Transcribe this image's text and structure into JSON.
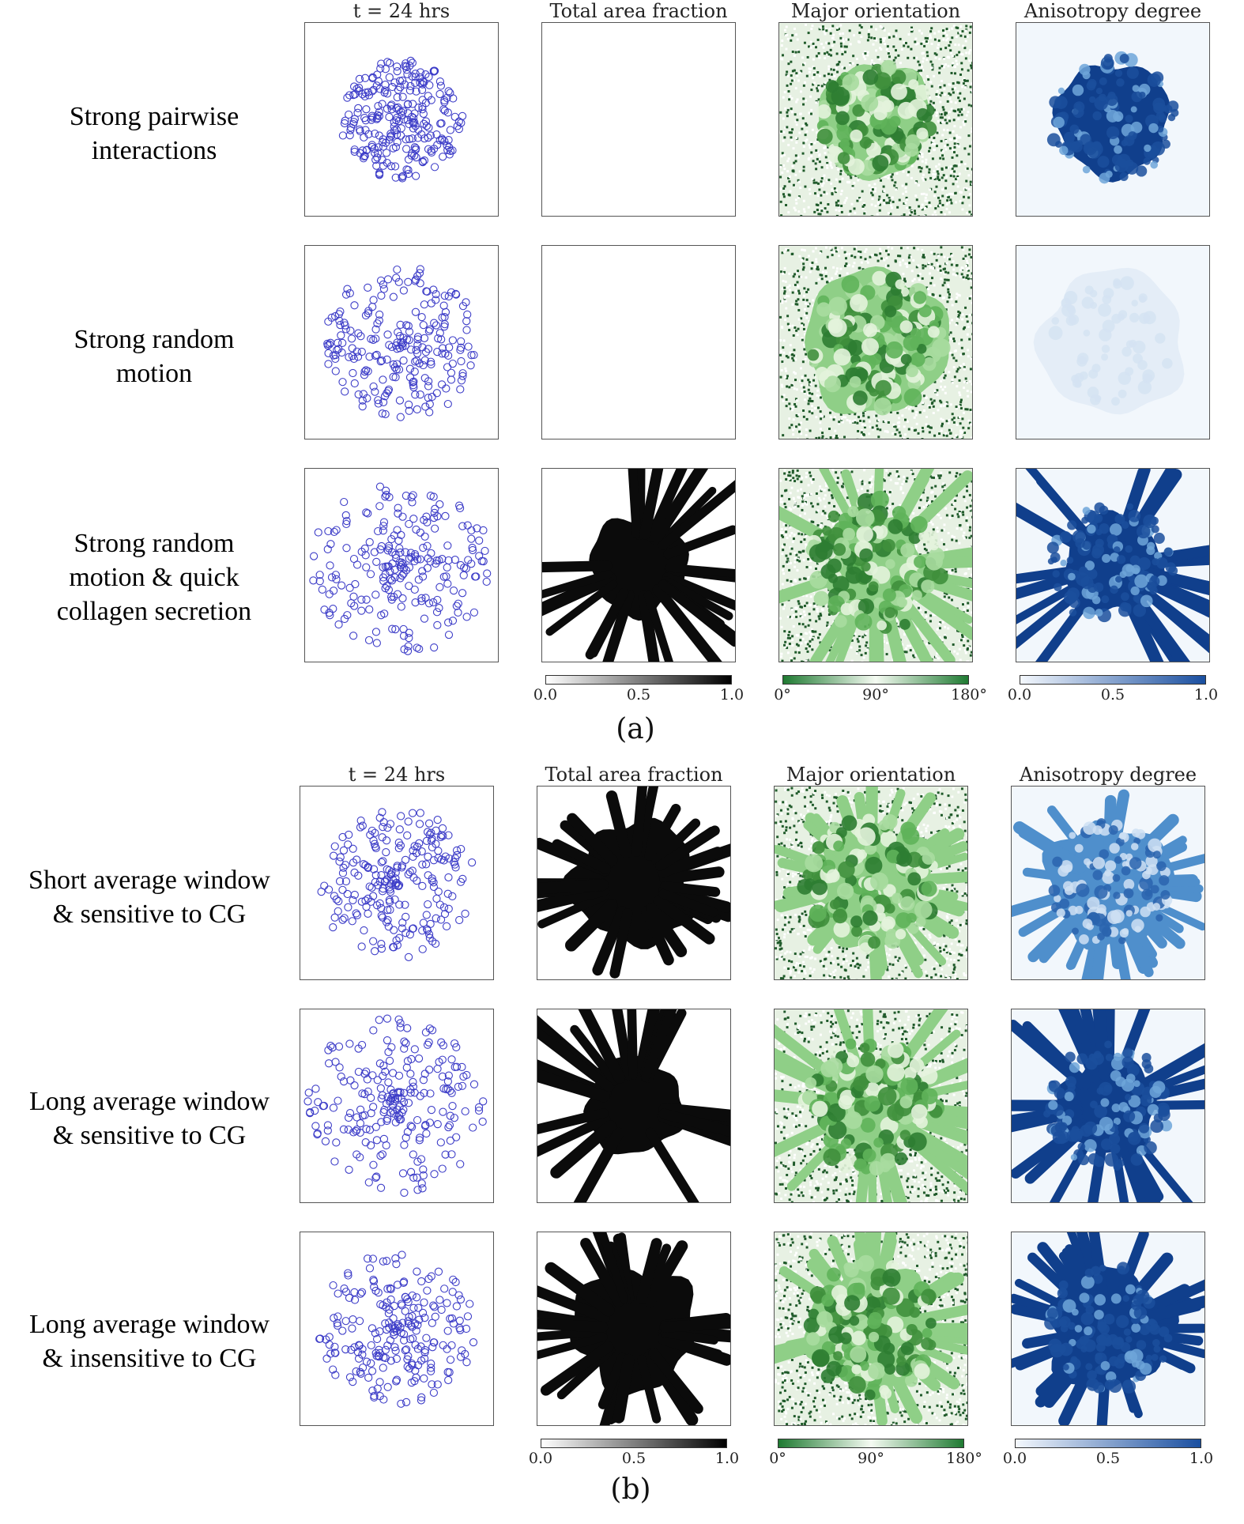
{
  "section_a": {
    "label": "(a)",
    "column_headers": [
      "t = 24 hrs",
      "Total area fraction",
      "Major orientation",
      "Anisotropy degree"
    ],
    "rows": [
      {
        "label_lines": [
          "Strong pairwise",
          "interactions"
        ],
        "area_fraction_visible": false,
        "anisotropy_level": "high",
        "cell_pattern": "compact"
      },
      {
        "label_lines": [
          "Strong random",
          "motion"
        ],
        "area_fraction_visible": false,
        "anisotropy_level": "faint",
        "cell_pattern": "spread"
      },
      {
        "label_lines": [
          "Strong random",
          "motion & quick",
          "collagen secretion"
        ],
        "area_fraction_visible": true,
        "anisotropy_level": "high",
        "cell_pattern": "scattered"
      }
    ],
    "colorbars": [
      {
        "name": "Total area fraction",
        "ticks": [
          "0.0",
          "0.5",
          "1.0"
        ],
        "colors": [
          "#ffffff",
          "#000000"
        ]
      },
      {
        "name": "Major orientation",
        "ticks": [
          "0°",
          "90°",
          "180°"
        ],
        "colors": [
          "#1f7a32",
          "#f5fbf2",
          "#1f7a32"
        ]
      },
      {
        "name": "Anisotropy degree",
        "ticks": [
          "0.0",
          "0.5",
          "1.0"
        ],
        "colors": [
          "#f4f8fd",
          "#1a4fa0"
        ]
      }
    ]
  },
  "section_b": {
    "label": "(b)",
    "column_headers": [
      "t = 24 hrs",
      "Total area fraction",
      "Major orientation",
      "Anisotropy degree"
    ],
    "rows": [
      {
        "label_lines": [
          "Short average window",
          "& sensitive to CG"
        ],
        "area_fraction_visible": true,
        "anisotropy_level": "mixed",
        "cell_pattern": "spread"
      },
      {
        "label_lines": [
          "Long average window",
          "& sensitive to CG"
        ],
        "area_fraction_visible": true,
        "anisotropy_level": "high",
        "cell_pattern": "scattered"
      },
      {
        "label_lines": [
          "Long average window",
          "& insensitive to CG"
        ],
        "area_fraction_visible": true,
        "anisotropy_level": "high",
        "cell_pattern": "spread"
      }
    ],
    "colorbars": [
      {
        "name": "Total area fraction",
        "ticks": [
          "0.0",
          "0.5",
          "1.0"
        ],
        "colors": [
          "#ffffff",
          "#000000"
        ]
      },
      {
        "name": "Major orientation",
        "ticks": [
          "0°",
          "90°",
          "180°"
        ],
        "colors": [
          "#1f7a32",
          "#f5fbf2",
          "#1f7a32"
        ]
      },
      {
        "name": "Anisotropy degree",
        "ticks": [
          "0.0",
          "0.5",
          "1.0"
        ],
        "colors": [
          "#f4f8fd",
          "#1a4fa0"
        ]
      }
    ]
  },
  "colors": {
    "cell_circle": "#3d3dc8",
    "area_dark": "#0b0b0b",
    "orientation_dark": "#1f5a2a",
    "orientation_light": "#e9f5e4",
    "anisotropy_dark": "#103f8c",
    "anisotropy_light": "#f2f7fc"
  }
}
